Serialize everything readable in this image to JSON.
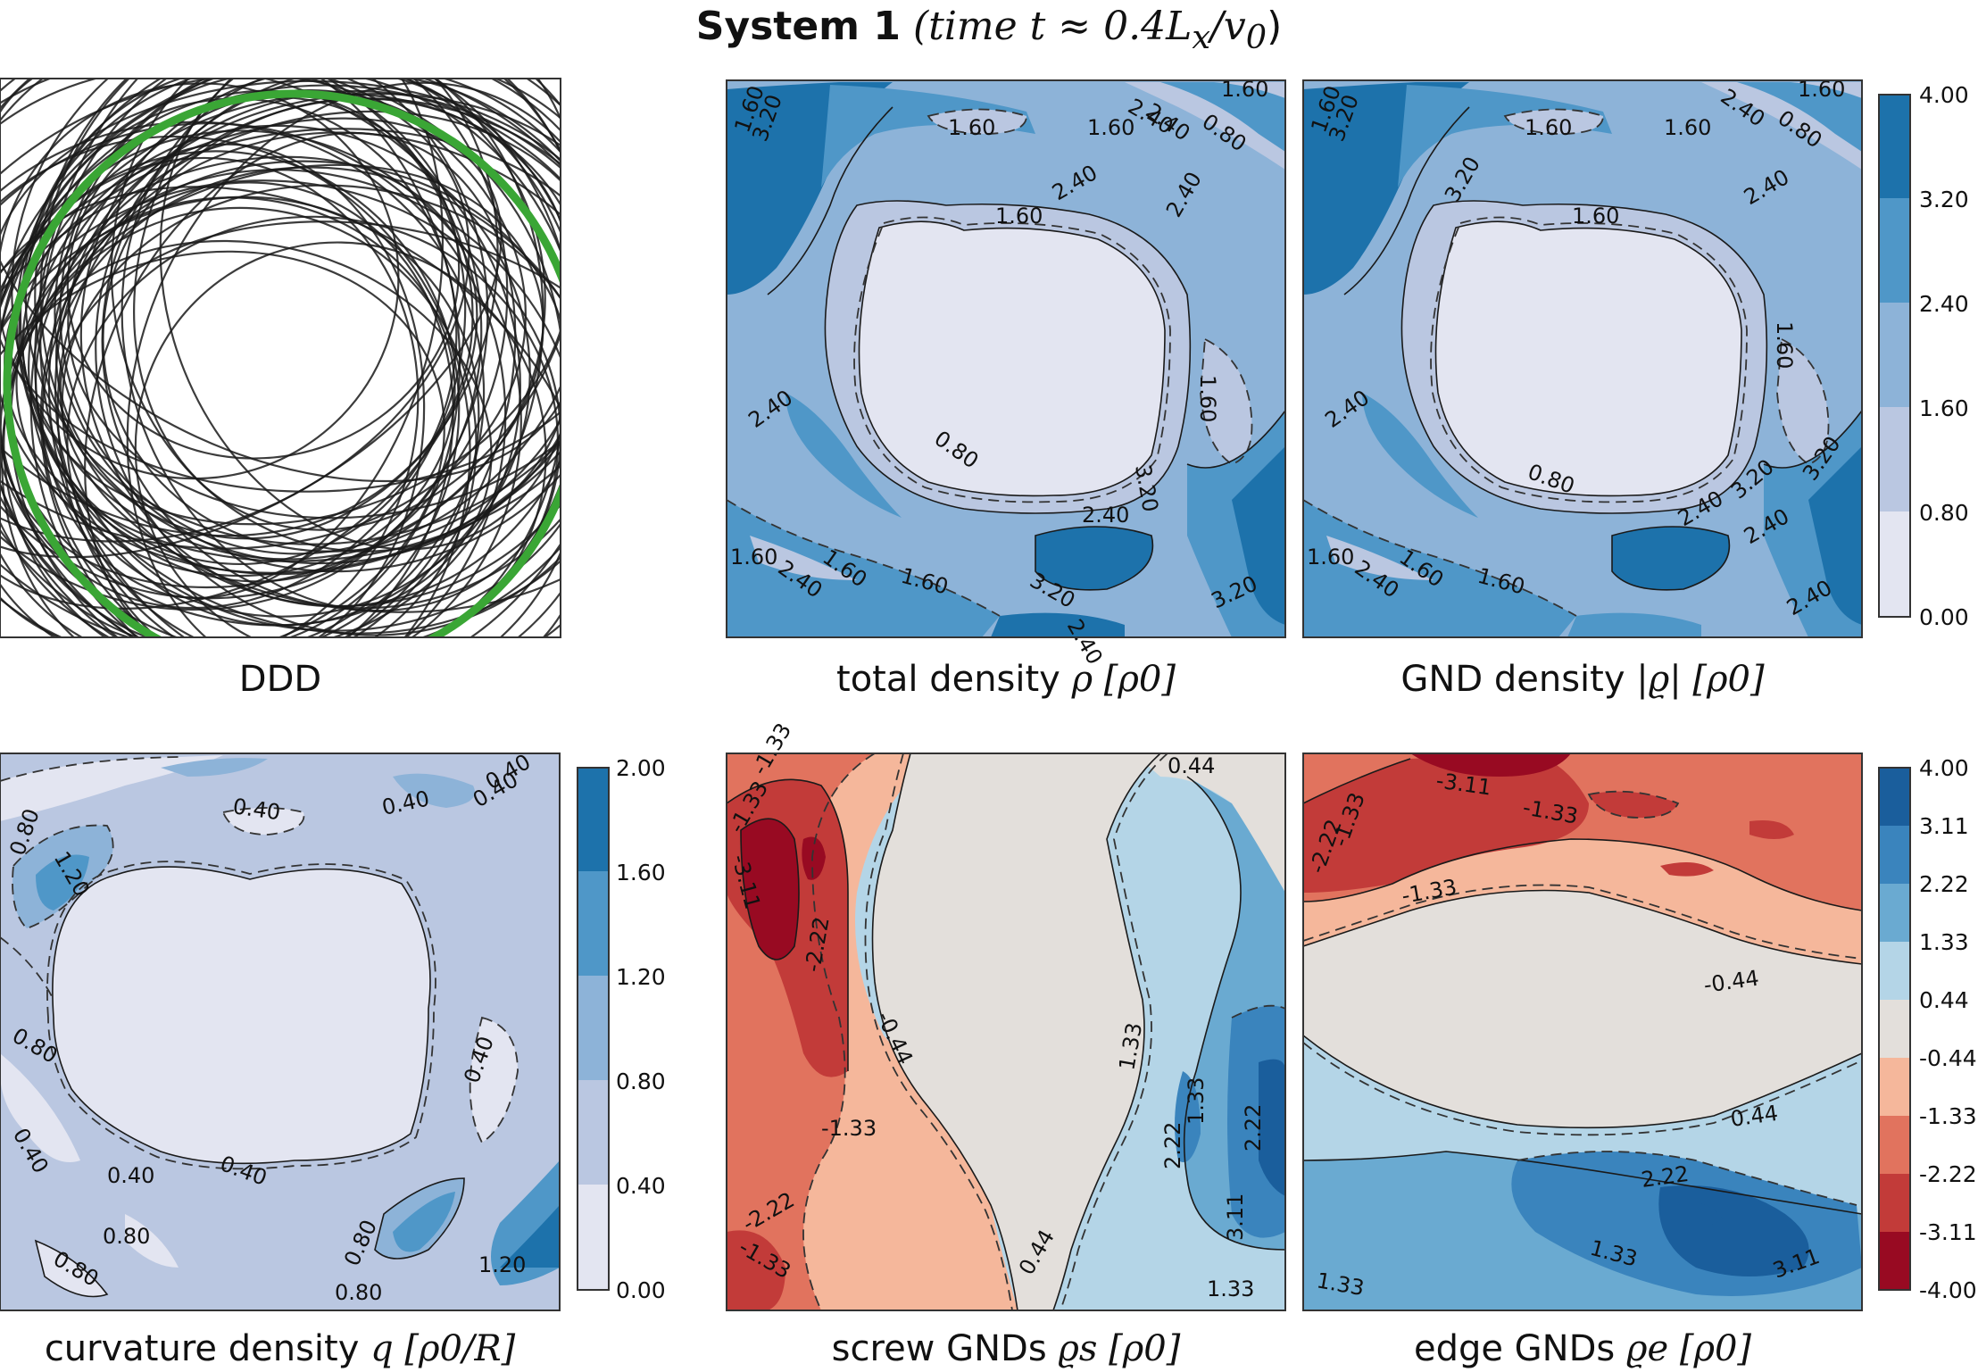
{
  "figure_title": {
    "bold": "System 1",
    "rest": "(time t ≈ 0.4L",
    "sub1": "x",
    "mid": "/v",
    "sub2": "0",
    "end": ")"
  },
  "chart_data": [
    {
      "type": "image",
      "id": "ddd",
      "caption": "DDD",
      "content": "discrete dislocation loops (black ellipses) with one highlighted loop (green)",
      "colors": {
        "loops": "#1a1a1a",
        "highlight": "#3aa635"
      }
    },
    {
      "type": "heatmap",
      "id": "total",
      "caption_text": "total density ",
      "caption_math": "ρ [ρ0]",
      "colormap": "Blues",
      "contour_labels": [
        "1.60",
        "3.20",
        "1.60",
        "1.60",
        "2.40",
        "0.80",
        "1.60",
        "1.60",
        "2.40",
        "2.40",
        "1.60",
        "2.40",
        "0.80",
        "2.40",
        "3.20",
        "1.60",
        "2.40",
        "1.60",
        "1.60",
        "3.20",
        "3.20",
        "2.40",
        "2.40"
      ],
      "colorbar_ref": "blues_cb"
    },
    {
      "type": "heatmap",
      "id": "gnd",
      "caption_text": "GND density ",
      "caption_math": "|ϱ| [ρ0]",
      "colormap": "Blues",
      "contour_labels": [
        "1.60",
        "3.20",
        "1.60",
        "1.60",
        "2.40",
        "0.80",
        "1.60",
        "1.60",
        "3.20",
        "2.40",
        "1.60",
        "2.40",
        "0.80",
        "2.40",
        "3.20",
        "1.60",
        "2.40",
        "1.60",
        "1.60",
        "2.40",
        "3.20",
        "2.40"
      ],
      "colorbar_ref": "blues_cb"
    },
    {
      "type": "heatmap",
      "id": "curv",
      "caption_text": "curvature density ",
      "caption_math": "q [ρ0/R]",
      "colormap": "Blues",
      "contour_labels": [
        "0.40",
        "0.40",
        "0.40",
        "0.40",
        "0.80",
        "1.20",
        "0.80",
        "0.40",
        "0.40",
        "0.40",
        "0.40",
        "0.80",
        "0.80",
        "0.80",
        "0.80",
        "1.20"
      ],
      "colorbar": {
        "ticks": [
          "2.00",
          "1.60",
          "1.20",
          "0.80",
          "0.40",
          "0.00"
        ],
        "range": [
          0,
          2.0
        ]
      }
    },
    {
      "type": "heatmap",
      "id": "screw",
      "caption_text": "screw GNDs ",
      "caption_math": "ϱs [ρ0]",
      "colormap": "RdBu",
      "contour_labels": [
        "0.44",
        "-1.33",
        "-1.33",
        "-3.11",
        "-2.22",
        "-0.44",
        "-1.33",
        "-2.22",
        "-1.33",
        "0.44",
        "1.33",
        "1.33",
        "2.22",
        "2.22",
        "3.11",
        "1.33"
      ],
      "colorbar_ref": "rdbu_cb"
    },
    {
      "type": "heatmap",
      "id": "edge",
      "caption_text": "edge GNDs ",
      "caption_math": "ϱe [ρ0]",
      "colormap": "RdBu",
      "contour_labels": [
        "-3.11",
        "-1.33",
        "-2.22",
        "-1.33",
        "-1.33",
        "-0.44",
        "0.44",
        "2.22",
        "1.33",
        "1.33",
        "3.11"
      ],
      "colorbar_ref": "rdbu_cb"
    }
  ],
  "blues_cb": {
    "ticks": [
      "4.00",
      "3.20",
      "2.40",
      "1.60",
      "0.80",
      "0.00"
    ],
    "range": [
      0,
      4.0
    ]
  },
  "rdbu_cb": {
    "ticks": [
      "4.00",
      "3.11",
      "2.22",
      "1.33",
      "0.44",
      "-0.44",
      "-1.33",
      "-2.22",
      "-3.11",
      "-4.00"
    ],
    "range": [
      -4.0,
      4.0
    ]
  },
  "colors": {
    "blues": [
      "#e3e5f1",
      "#bac7e1",
      "#8db3d8",
      "#4f97c8",
      "#1d72ab"
    ],
    "rdbu": [
      "#980a22",
      "#c23b39",
      "#e1735e",
      "#f5b79b",
      "#e3dfdb",
      "#b4d5e7",
      "#6aaad1",
      "#3a84bd",
      "#1a5e9c"
    ],
    "contour": "#1a1a1a",
    "axes": "#333333"
  }
}
